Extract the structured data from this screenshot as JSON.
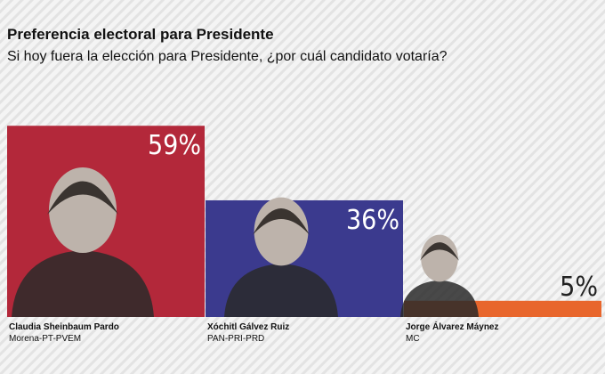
{
  "chart_data": {
    "type": "bar",
    "title": "Preferencia electoral para Presidente",
    "subtitle": "Si hoy fuera la elección para Presidente, ¿por cuál candidato votaría?",
    "categories": [
      "Claudia Sheinbaum Pardo",
      "Xóchitl Gálvez Ruiz",
      "Jorge Álvarez Máynez"
    ],
    "parties": [
      "Morena-PT-PVEM",
      "PAN-PRI-PRD",
      "MC"
    ],
    "values": [
      59,
      36,
      5
    ],
    "value_labels": [
      "59%",
      "36%",
      "5%"
    ],
    "colors": [
      "#b3283a",
      "#3b3a8e",
      "#e8662c"
    ]
  }
}
